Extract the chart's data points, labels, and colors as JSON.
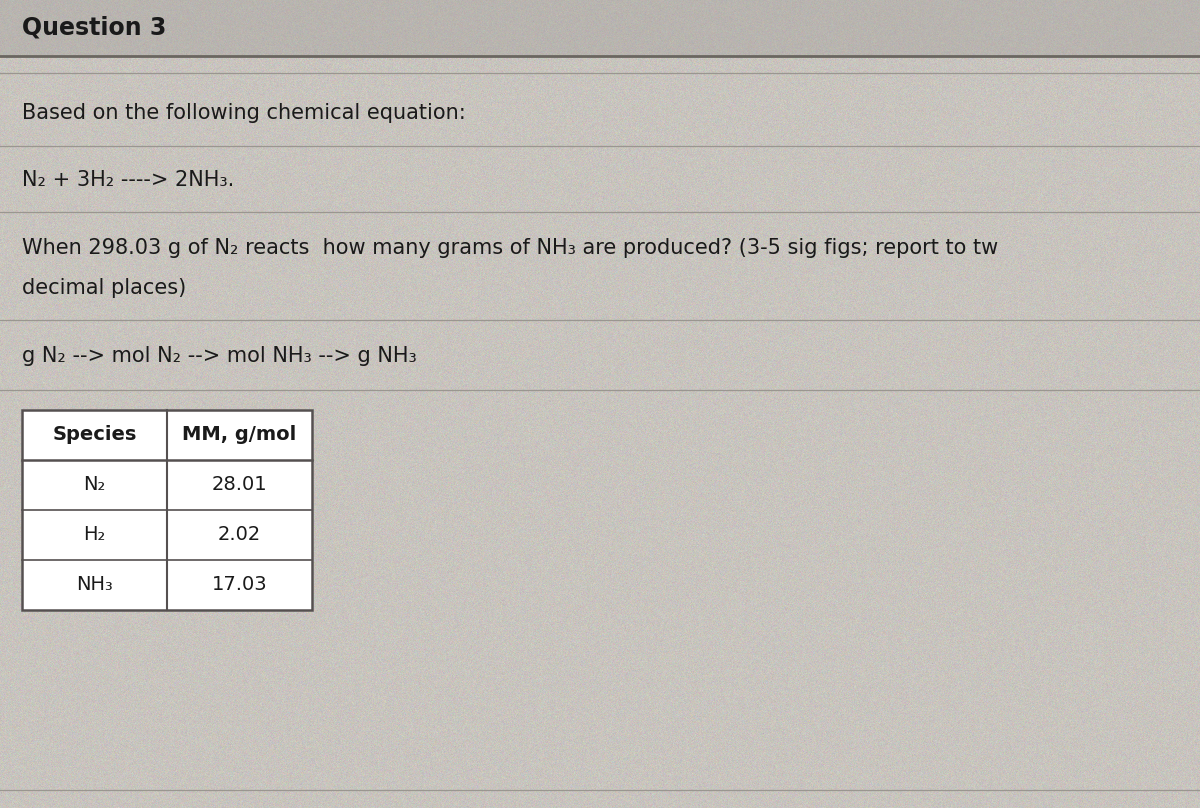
{
  "title": "Question 3",
  "bg_color_light": "#cdc8c2",
  "bg_color_body": "#c8c3bc",
  "title_bar_bg": "#b8b4ae",
  "line1": "Based on the following chemical equation:",
  "equation": "N₂ + 3H₂ ----> 2NH₃.",
  "question_line1": "When 298.03 g of N₂ reacts  how many grams of NH₃ are produced? (3-5 sig figs; report to tw",
  "question_line2": "decimal places)",
  "pathway": "g N₂ --> mol N₂ --> mol NH₃ --> g NH₃",
  "table_headers": [
    "Species",
    "MM, g/mol"
  ],
  "table_data": [
    [
      "N₂",
      "28.01"
    ],
    [
      "H₂",
      "2.02"
    ],
    [
      "NH₃",
      "17.03"
    ]
  ],
  "title_fontsize": 17,
  "body_fontsize": 15,
  "table_fontsize": 14,
  "separator_color": "#9a9690",
  "text_color": "#1a1a1a",
  "table_border_color": "#555050"
}
